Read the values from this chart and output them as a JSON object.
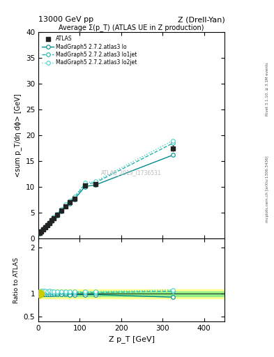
{
  "title_left": "13000 GeV pp",
  "title_right": "Z (Drell-Yan)",
  "main_title": "Average Σ(p_T) (ATLAS UE in Z production)",
  "watermark": "ATLAS_2019_I1736531",
  "right_label_top": "Rivet 3.1.10, ≥ 3.1M events",
  "right_label_bottom": "mcplots.cern.ch [arXiv:1306.3436]",
  "ylabel_main": "<sum p_T/dη dϕ> [GeV]",
  "ylabel_ratio": "Ratio to ATLAS",
  "xlabel": "Z p_T [GeV]",
  "xlim": [
    0,
    450
  ],
  "ylim_main": [
    0,
    40
  ],
  "ylim_ratio": [
    0.4,
    2.2
  ],
  "atlas_x": [
    2.5,
    7.5,
    12.5,
    17.5,
    22.5,
    27.5,
    32.5,
    37.5,
    45,
    55,
    65,
    75,
    87.5,
    112.5,
    137.5,
    325
  ],
  "atlas_y": [
    1.1,
    1.45,
    1.8,
    2.2,
    2.6,
    3.0,
    3.5,
    4.0,
    4.6,
    5.4,
    6.3,
    7.0,
    7.8,
    10.3,
    10.6,
    17.5
  ],
  "atlas_yerr": [
    0.05,
    0.06,
    0.07,
    0.08,
    0.09,
    0.1,
    0.12,
    0.13,
    0.15,
    0.18,
    0.2,
    0.23,
    0.25,
    0.35,
    0.36,
    0.6
  ],
  "lo_x": [
    2.5,
    7.5,
    12.5,
    17.5,
    22.5,
    27.5,
    32.5,
    37.5,
    45,
    55,
    65,
    75,
    87.5,
    112.5,
    137.5,
    325
  ],
  "lo_y": [
    1.05,
    1.42,
    1.78,
    2.18,
    2.58,
    2.98,
    3.45,
    3.95,
    4.55,
    5.35,
    6.2,
    6.85,
    7.65,
    10.1,
    10.4,
    16.2
  ],
  "lo1jet_x": [
    2.5,
    7.5,
    12.5,
    17.5,
    22.5,
    27.5,
    32.5,
    37.5,
    45,
    55,
    65,
    75,
    87.5,
    112.5,
    137.5,
    325
  ],
  "lo1jet_y": [
    1.12,
    1.5,
    1.88,
    2.28,
    2.7,
    3.1,
    3.6,
    4.1,
    4.7,
    5.55,
    6.45,
    7.2,
    8.0,
    10.55,
    10.85,
    18.5
  ],
  "lo2jet_x": [
    2.5,
    7.5,
    12.5,
    17.5,
    22.5,
    27.5,
    32.5,
    37.5,
    45,
    55,
    65,
    75,
    87.5,
    112.5,
    137.5,
    325
  ],
  "lo2jet_y": [
    1.15,
    1.55,
    1.92,
    2.33,
    2.75,
    3.18,
    3.68,
    4.2,
    4.8,
    5.68,
    6.6,
    7.35,
    8.2,
    10.8,
    11.1,
    19.0
  ],
  "color_lo": "#008B8B",
  "color_lo1jet": "#20B2AA",
  "color_lo2jet": "#48D1CC",
  "atlas_color": "#222222",
  "legend_entries": [
    "ATLAS",
    "MadGraph5 2.7.2.atlas3 lo",
    "MadGraph5 2.7.2.atlas3 lo1jet",
    "MadGraph5 2.7.2.atlas3 lo2jet"
  ]
}
